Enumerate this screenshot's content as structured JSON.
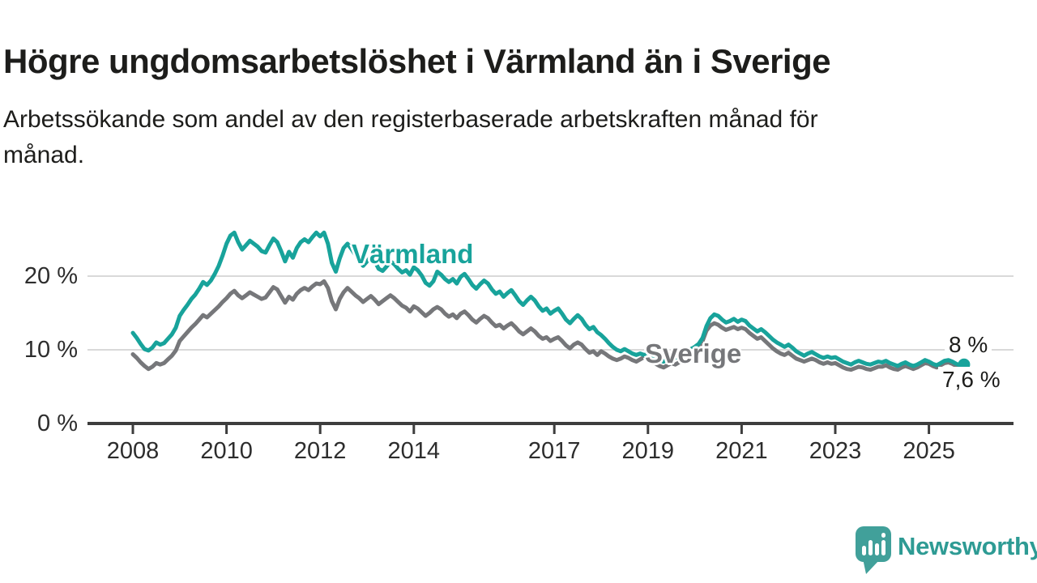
{
  "header": {
    "title": "Högre ungdomsarbetslöshet i Värmland än i Sverige",
    "subtitle_line1": "Arbetssökande som andel av den registerbaserade arbetskraften månad för",
    "subtitle_line2": "månad."
  },
  "colors": {
    "background": "#ffffff",
    "title_text": "#1d1d1b",
    "tick_text": "#2d2d2d",
    "axis": "#3d3d3d",
    "gridline": "#d9d9d9",
    "varmland": "#18a39b",
    "sverige": "#76777a",
    "logo_teal": "#41a09a",
    "logo_text_teal": "#2e9b94"
  },
  "chart_data": {
    "type": "line",
    "title": "Högre ungdomsarbetslöshet i Värmland än i Sverige",
    "subtitle": "Arbetssökande som andel av den registerbaserade arbetskraften månad för månad.",
    "xlabel": "",
    "ylabel": "",
    "x_unit": "month",
    "x_start_year": 2008,
    "x_start_month": 1,
    "x_step_months": 1,
    "x_end_year": 2025,
    "x_end_month": 10,
    "xlim": [
      2007.05,
      2026.85
    ],
    "ylim": [
      0,
      27.5
    ],
    "grid": true,
    "grid_values": [
      10,
      20
    ],
    "legend_position": "inline-labels",
    "y_ticks": [
      {
        "value": 0,
        "label": "0 %"
      },
      {
        "value": 10,
        "label": "10 %"
      },
      {
        "value": 20,
        "label": "20 %"
      }
    ],
    "x_ticks": [
      {
        "value": 2008,
        "label": "2008"
      },
      {
        "value": 2010,
        "label": "2010"
      },
      {
        "value": 2012,
        "label": "2012"
      },
      {
        "value": 2014,
        "label": "2014"
      },
      {
        "value": 2017,
        "label": "2017"
      },
      {
        "value": 2019,
        "label": "2019"
      },
      {
        "value": 2021,
        "label": "2021"
      },
      {
        "value": 2023,
        "label": "2023"
      },
      {
        "value": 2025,
        "label": "2025"
      }
    ],
    "series": [
      {
        "name": "Värmland",
        "label": "Värmland",
        "color": "#18a39b",
        "end_label": "8 %",
        "end_value": 8.0,
        "end_dot": true,
        "values": [
          12.3,
          11.6,
          10.8,
          10.1,
          9.9,
          10.3,
          11.0,
          10.7,
          10.9,
          11.5,
          12.1,
          13.0,
          14.6,
          15.4,
          16.1,
          16.9,
          17.5,
          18.3,
          19.2,
          18.8,
          19.4,
          20.3,
          21.4,
          22.8,
          24.4,
          25.5,
          25.9,
          24.6,
          23.6,
          24.2,
          24.8,
          24.4,
          24.0,
          23.4,
          23.2,
          24.2,
          25.1,
          24.6,
          23.4,
          22.0,
          23.3,
          22.5,
          23.8,
          24.6,
          25.0,
          24.6,
          25.3,
          25.9,
          25.4,
          25.9,
          24.4,
          21.8,
          20.6,
          22.4,
          23.8,
          24.4,
          23.7,
          22.9,
          22.2,
          21.4,
          22.0,
          22.6,
          22.0,
          21.0,
          20.7,
          21.3,
          22.0,
          21.6,
          21.0,
          20.5,
          20.8,
          20.2,
          21.2,
          20.8,
          20.1,
          19.1,
          18.7,
          19.3,
          20.6,
          20.2,
          19.6,
          19.2,
          19.6,
          19.0,
          19.9,
          20.3,
          19.6,
          18.8,
          18.3,
          18.9,
          19.4,
          19.0,
          18.2,
          17.6,
          17.9,
          17.2,
          17.7,
          18.1,
          17.4,
          16.6,
          16.1,
          16.7,
          17.2,
          16.7,
          15.9,
          15.3,
          15.6,
          14.9,
          15.3,
          15.6,
          14.9,
          14.1,
          13.6,
          14.2,
          14.7,
          14.2,
          13.4,
          12.8,
          13.1,
          12.4,
          12.0,
          11.5,
          10.9,
          10.4,
          10.0,
          9.8,
          10.1,
          9.8,
          9.5,
          9.3,
          9.5,
          9.3,
          9.4,
          9.0,
          8.7,
          8.5,
          8.4,
          8.8,
          9.1,
          8.9,
          9.2,
          9.5,
          9.8,
          10.1,
          10.4,
          10.8,
          11.6,
          13.2,
          14.3,
          14.8,
          14.6,
          14.1,
          13.7,
          13.9,
          14.2,
          13.8,
          14.1,
          13.9,
          13.3,
          12.9,
          12.5,
          12.8,
          12.4,
          11.9,
          11.4,
          11.0,
          10.7,
          10.4,
          10.7,
          10.3,
          9.8,
          9.5,
          9.2,
          9.5,
          9.7,
          9.4,
          9.1,
          8.9,
          9.1,
          8.9,
          9.0,
          8.7,
          8.4,
          8.2,
          8.0,
          8.3,
          8.5,
          8.3,
          8.1,
          8.0,
          8.2,
          8.4,
          8.3,
          8.5,
          8.2,
          8.0,
          7.8,
          8.1,
          8.3,
          8.0,
          7.8,
          8.0,
          8.3,
          8.6,
          8.4,
          8.1,
          7.9,
          8.2,
          8.5,
          8.6,
          8.4,
          8.1,
          7.9,
          8.0
        ]
      },
      {
        "name": "Sverige",
        "label": "Sverige",
        "color": "#76777a",
        "end_label": "7,6 %",
        "end_value": 7.6,
        "end_dot": false,
        "values": [
          9.4,
          8.9,
          8.3,
          7.8,
          7.4,
          7.7,
          8.2,
          8.0,
          8.2,
          8.7,
          9.2,
          9.9,
          11.2,
          11.8,
          12.4,
          13.0,
          13.5,
          14.1,
          14.7,
          14.4,
          14.9,
          15.4,
          15.9,
          16.5,
          17.0,
          17.6,
          18.0,
          17.4,
          17.0,
          17.4,
          17.8,
          17.5,
          17.2,
          16.9,
          17.1,
          17.8,
          18.5,
          18.2,
          17.3,
          16.4,
          17.2,
          16.8,
          17.6,
          18.1,
          18.4,
          18.1,
          18.6,
          19.0,
          18.9,
          19.3,
          18.4,
          16.6,
          15.5,
          16.9,
          17.8,
          18.4,
          17.9,
          17.4,
          17.0,
          16.5,
          16.9,
          17.3,
          16.8,
          16.2,
          16.6,
          17.0,
          17.4,
          17.0,
          16.5,
          16.0,
          15.7,
          15.2,
          15.9,
          15.6,
          15.1,
          14.6,
          15.0,
          15.5,
          15.8,
          15.5,
          14.9,
          14.5,
          14.8,
          14.3,
          14.9,
          15.2,
          14.7,
          14.1,
          13.7,
          14.2,
          14.6,
          14.3,
          13.7,
          13.2,
          13.4,
          12.9,
          13.3,
          13.6,
          13.1,
          12.5,
          12.1,
          12.5,
          12.9,
          12.5,
          11.9,
          11.5,
          11.7,
          11.2,
          11.5,
          11.7,
          11.2,
          10.6,
          10.2,
          10.7,
          11.0,
          10.7,
          10.1,
          9.6,
          9.8,
          9.3,
          9.8,
          9.5,
          9.1,
          8.8,
          8.6,
          8.8,
          9.1,
          8.9,
          8.6,
          8.4,
          8.7,
          9.0,
          8.8,
          8.5,
          8.1,
          7.8,
          7.6,
          7.9,
          8.2,
          8.0,
          8.3,
          8.6,
          8.9,
          9.3,
          9.9,
          10.3,
          11.2,
          12.6,
          13.3,
          13.6,
          13.4,
          13.0,
          12.7,
          12.9,
          13.1,
          12.8,
          13.0,
          12.8,
          12.3,
          11.9,
          11.5,
          11.7,
          11.2,
          10.7,
          10.2,
          9.8,
          9.5,
          9.3,
          9.6,
          9.2,
          8.8,
          8.6,
          8.4,
          8.6,
          8.8,
          8.6,
          8.3,
          8.1,
          8.3,
          8.1,
          8.2,
          7.9,
          7.6,
          7.4,
          7.3,
          7.5,
          7.7,
          7.6,
          7.4,
          7.3,
          7.5,
          7.7,
          7.7,
          7.9,
          7.6,
          7.4,
          7.3,
          7.6,
          7.8,
          7.6,
          7.4,
          7.6,
          7.9,
          8.2,
          8.1,
          7.8,
          7.6,
          7.9,
          8.2,
          8.3,
          8.1,
          7.8,
          7.6,
          7.6
        ]
      }
    ]
  },
  "branding": {
    "logo_text": "Newsworthy",
    "logo_icon": "speech-bubble-bar-chart-icon"
  }
}
